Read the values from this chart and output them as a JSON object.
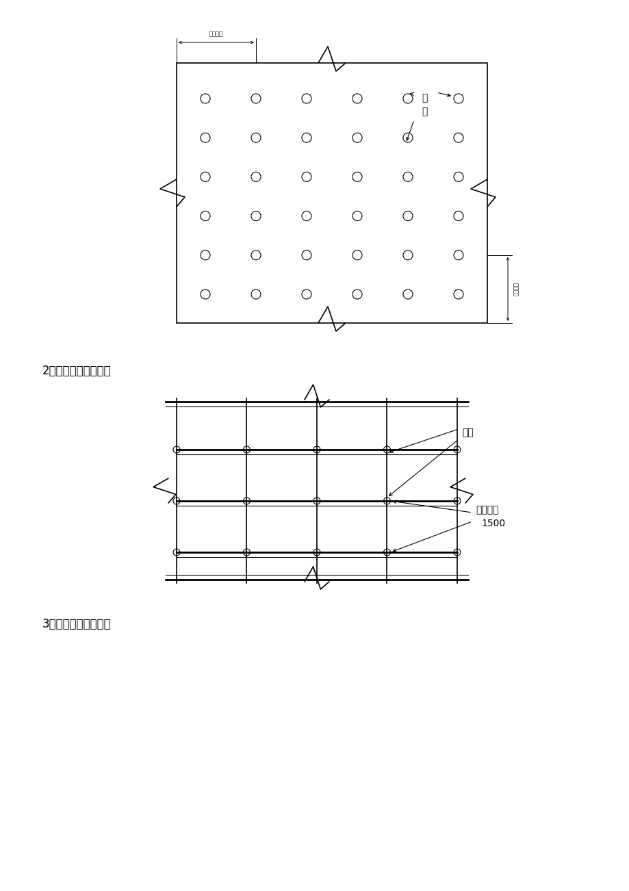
{
  "bg_color": "#ffffff",
  "fig_width": 9.2,
  "fig_height": 13.02,
  "label_2": "2、模架支设剖面图：",
  "label_3": "3、模架支设立面图：",
  "label_ligan_top": "立杆间距",
  "label_ligan_right": "立杆间距",
  "label_ligan": "立杆",
  "label_heng1": "横杆步距",
  "label_heng2": "1500"
}
